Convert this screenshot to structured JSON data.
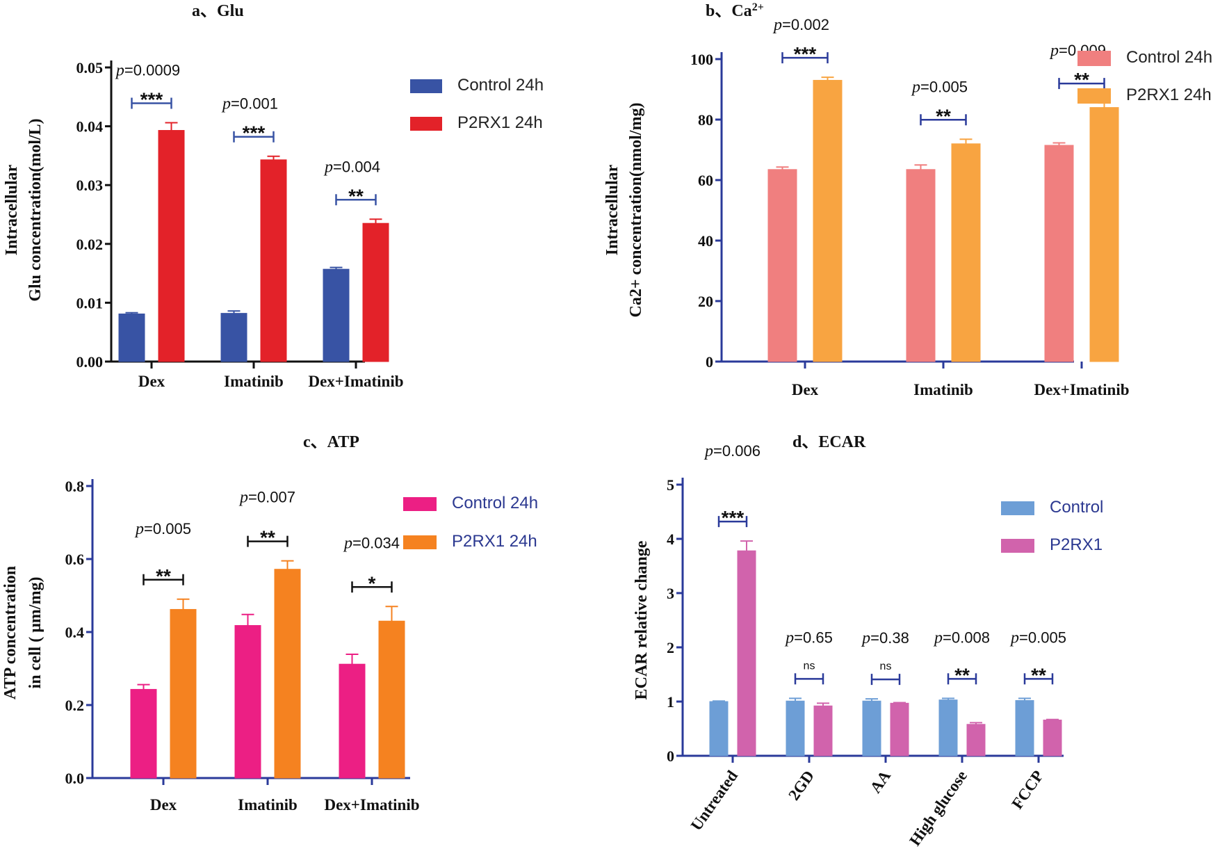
{
  "chart_data": [
    {
      "id": "a",
      "type": "bar",
      "title": "a、Glu",
      "ylabel_lines": [
        "Intracellular",
        "Glu concentration(mol/L)"
      ],
      "categories": [
        "Dex",
        "Imatinib",
        "Dex+Imatinib"
      ],
      "ylim": [
        0,
        0.05
      ],
      "yticks": [
        0,
        0.01,
        0.02,
        0.03,
        0.04,
        0.05
      ],
      "ytick_labels": [
        "0.00",
        "0.01",
        "0.02",
        "0.03",
        "0.04",
        "0.05"
      ],
      "series": [
        {
          "name": "Control 24h",
          "color": "#3853a4",
          "values": [
            0.0081,
            0.0082,
            0.0157
          ],
          "errors": [
            0.0002,
            0.0004,
            0.0003
          ]
        },
        {
          "name": "P2RX1 24h",
          "color": "#e32229",
          "values": [
            0.0393,
            0.0343,
            0.0235
          ],
          "errors": [
            0.0013,
            0.0006,
            0.0007
          ]
        }
      ],
      "bracket_color": "#3853a4",
      "legend_text_color": "#222222",
      "annotations": [
        {
          "p": "=0.0009",
          "stars": "***"
        },
        {
          "p": "=0.001",
          "stars": "***"
        },
        {
          "p": "=0.004",
          "stars": "**"
        }
      ]
    },
    {
      "id": "b",
      "type": "bar",
      "title": "b、Ca",
      "title_sup": "2+",
      "ylabel_lines": [
        "Intracellular",
        "Ca2+ concentration(nmol/mg)"
      ],
      "categories": [
        "Dex",
        "Imatinib",
        "Dex+Imatinib"
      ],
      "ylim": [
        0,
        100
      ],
      "yticks": [
        0,
        20,
        40,
        60,
        80,
        100
      ],
      "ytick_labels": [
        "0",
        "20",
        "40",
        "60",
        "80",
        "100"
      ],
      "series": [
        {
          "name": "Control 24h",
          "color": "#f07f7f",
          "values": [
            63.5,
            63.5,
            71.5
          ],
          "errors": [
            0.8,
            1.5,
            0.8
          ]
        },
        {
          "name": "P2RX1 24h",
          "color": "#f8a441",
          "values": [
            93,
            72,
            84
          ],
          "errors": [
            1.0,
            1.5,
            1.5
          ]
        }
      ],
      "bracket_color": "#2a3a9a",
      "legend_text_color": "#222222",
      "annotations": [
        {
          "p": "=0.002",
          "stars": "***"
        },
        {
          "p": "=0.005",
          "stars": "**"
        },
        {
          "p": "=0.009",
          "stars": "**"
        }
      ]
    },
    {
      "id": "c",
      "type": "bar",
      "title": "c、ATP",
      "ylabel_lines": [
        "ATP concentration",
        "in cell ( μm/mg)"
      ],
      "categories": [
        "Dex",
        "Imatinib",
        "Dex+Imatinib"
      ],
      "ylim": [
        0,
        0.8
      ],
      "yticks": [
        0,
        0.2,
        0.4,
        0.6,
        0.8
      ],
      "ytick_labels": [
        "0.0",
        "0.2",
        "0.4",
        "0.6",
        "0.8"
      ],
      "series": [
        {
          "name": "Control 24h",
          "color": "#ec1f84",
          "values": [
            0.243,
            0.418,
            0.312
          ],
          "errors": [
            0.013,
            0.03,
            0.027
          ]
        },
        {
          "name": "P2RX1 24h",
          "color": "#f58220",
          "values": [
            0.462,
            0.572,
            0.43
          ],
          "errors": [
            0.028,
            0.023,
            0.04
          ]
        }
      ],
      "bracket_color": "#111111",
      "legend_text_color": "#2b3890",
      "annotations": [
        {
          "p": "=0.005",
          "stars": "**"
        },
        {
          "p": "=0.007",
          "stars": "**"
        },
        {
          "p": "=0.034",
          "stars": "*"
        }
      ]
    },
    {
      "id": "d",
      "type": "bar",
      "title": "d、ECAR",
      "ylabel_lines": [
        "ECAR relative change"
      ],
      "categories": [
        "Untreated",
        "2GD",
        "AA",
        "High glucose",
        "FCCP"
      ],
      "ylim": [
        0,
        5
      ],
      "yticks": [
        0,
        1,
        2,
        3,
        4,
        5
      ],
      "ytick_labels": [
        "0",
        "1",
        "2",
        "3",
        "4",
        "5"
      ],
      "series": [
        {
          "name": "Control",
          "color": "#6d9ed6",
          "values": [
            1.0,
            1.01,
            1.01,
            1.03,
            1.02
          ],
          "errors": [
            0.01,
            0.05,
            0.04,
            0.03,
            0.04
          ]
        },
        {
          "name": "P2RX1",
          "color": "#d163ac",
          "values": [
            3.78,
            0.92,
            0.97,
            0.58,
            0.66
          ],
          "errors": [
            0.18,
            0.05,
            0.01,
            0.03,
            0.01
          ]
        }
      ],
      "bracket_color": "#2a3a9a",
      "legend_text_color": "#2b3890",
      "annotations": [
        {
          "p": "=0.006",
          "stars": "***"
        },
        {
          "p": "=0.65",
          "stars": "ns"
        },
        {
          "p": "=0.38",
          "stars": "ns"
        },
        {
          "p": "=0.008",
          "stars": "**"
        },
        {
          "p": "=0.005",
          "stars": "**"
        }
      ]
    }
  ]
}
